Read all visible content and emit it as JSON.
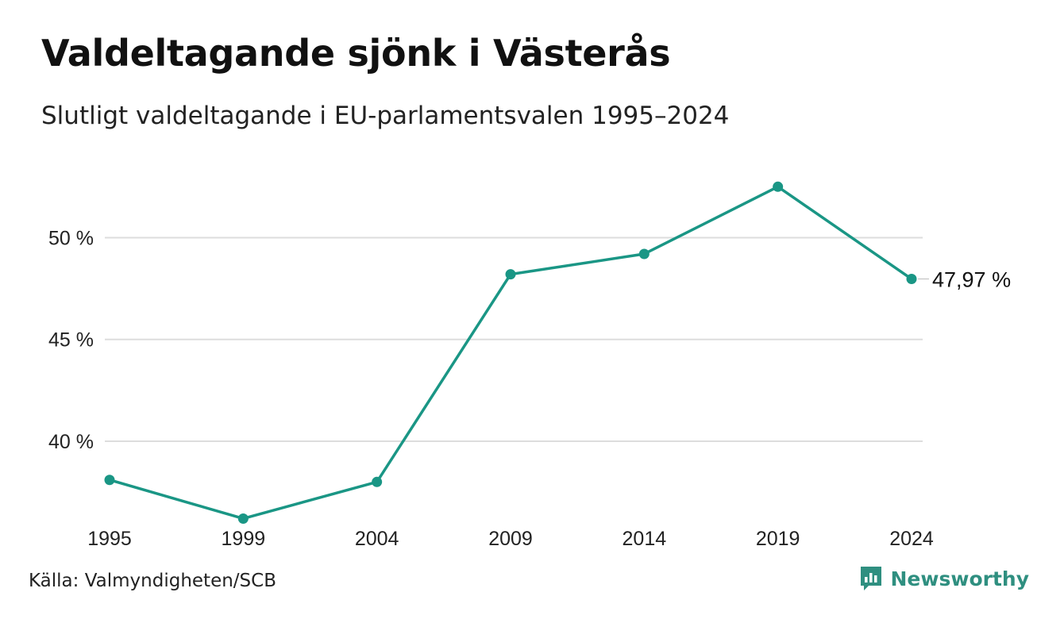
{
  "header": {
    "title": "Valdeltagande sjönk i Västerås",
    "subtitle": "Slutligt valdeltagande i EU-parlamentsvalen 1995–2024"
  },
  "footer": {
    "source": "Källa: Valmyndigheten/SCB",
    "brand": "Newsworthy",
    "brand_icon": "newsworthy-logo-icon"
  },
  "colors": {
    "line": "#1a9685",
    "grid": "#dddddd",
    "brand": "#2f8f80"
  },
  "chart_data": {
    "type": "line",
    "x": [
      "1995",
      "1999",
      "2004",
      "2009",
      "2014",
      "2019",
      "2024"
    ],
    "series": [
      {
        "values": [
          38.1,
          36.2,
          38.0,
          48.2,
          49.2,
          52.5,
          47.97
        ]
      }
    ],
    "yticks": [
      {
        "value": 40,
        "label": "40 %"
      },
      {
        "value": 45,
        "label": "45 %"
      },
      {
        "value": 50,
        "label": "50 %"
      }
    ],
    "ylim": [
      35.4,
      54.5
    ],
    "end_label": "47,97 %",
    "grid": true,
    "legend": false
  }
}
